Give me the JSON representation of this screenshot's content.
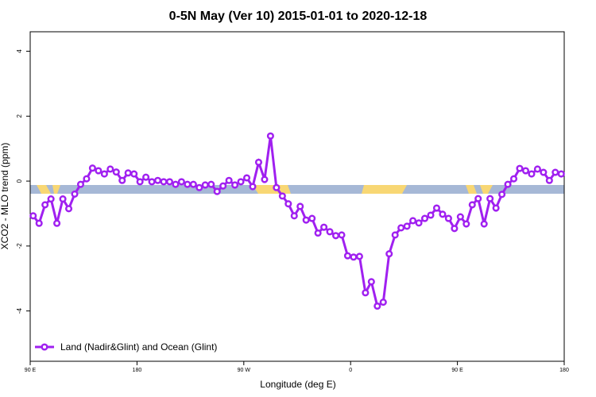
{
  "chart_data": {
    "type": "line",
    "title": "0-5N May (Ver 10)   2015-01-01 to 2020-12-18",
    "x_label": "Longitude (deg E)",
    "y_label": "XCO2 - MLO trend (ppm)",
    "xlim": [
      90,
      540
    ],
    "ylim": [
      -5.55,
      4.6
    ],
    "xticks": [
      {
        "value": 90,
        "label": "90 E"
      },
      180,
      {
        "value": 270,
        "label": "90 W"
      },
      {
        "value": 360,
        "label": "0"
      },
      {
        "value": 450,
        "label": "90 E"
      },
      {
        "value": 540,
        "label": "180"
      }
    ],
    "yticks": [
      4,
      2,
      0,
      -2,
      -4
    ],
    "legend": "bottomleft",
    "x": [
      92.5,
      97.5,
      102.5,
      107.5,
      112.5,
      117.5,
      122.5,
      127.5,
      132.5,
      137.5,
      142.5,
      147.5,
      152.5,
      157.5,
      162.5,
      167.5,
      172.5,
      177.5,
      182.5,
      187.5,
      192.5,
      197.5,
      202.5,
      207.5,
      212.5,
      217.5,
      222.5,
      227.5,
      232.5,
      237.5,
      242.5,
      247.5,
      252.5,
      257.5,
      262.5,
      267.5,
      272.5,
      277.5,
      282.5,
      287.5,
      292.5,
      297.5,
      302.5,
      307.5,
      312.5,
      317.5,
      322.5,
      327.5,
      332.5,
      337.5,
      342.5,
      347.5,
      352.5,
      357.5,
      362.5,
      367.5,
      372.5,
      377.5,
      382.5,
      387.5,
      392.5,
      397.5,
      402.5,
      407.5,
      412.5,
      417.5,
      422.5,
      427.5,
      432.5,
      437.5,
      442.5,
      447.5,
      452.5,
      457.5,
      462.5,
      467.5,
      472.5,
      477.5,
      482.5,
      487.5,
      492.5,
      497.5,
      502.5,
      507.5,
      512.5,
      517.5,
      522.5,
      527.5,
      532.5,
      537.5
    ],
    "series": [
      {
        "name": "Land (Nadir&Glint) and Ocean (Glint)",
        "color": "#a020f0",
        "values": [
          -1.07,
          -1.3,
          -0.73,
          -0.55,
          -1.3,
          -0.55,
          -0.85,
          -0.4,
          -0.1,
          0.07,
          0.4,
          0.32,
          0.22,
          0.37,
          0.28,
          0.02,
          0.25,
          0.22,
          -0.02,
          0.12,
          -0.02,
          0.02,
          -0.02,
          -0.02,
          -0.1,
          -0.02,
          -0.1,
          -0.1,
          -0.2,
          -0.12,
          -0.1,
          -0.32,
          -0.15,
          0.02,
          -0.12,
          -0.02,
          0.1,
          -0.17,
          0.58,
          0.05,
          1.39,
          -0.2,
          -0.46,
          -0.7,
          -1.07,
          -0.78,
          -1.2,
          -1.15,
          -1.6,
          -1.42,
          -1.56,
          -1.68,
          -1.66,
          -2.3,
          -2.34,
          -2.32,
          -3.44,
          -3.1,
          -3.85,
          -3.73,
          -2.24,
          -1.66,
          -1.44,
          -1.39,
          -1.22,
          -1.29,
          -1.15,
          -1.05,
          -0.83,
          -1.02,
          -1.15,
          -1.46,
          -1.1,
          -1.32,
          -0.73,
          -0.54,
          -1.32,
          -0.54,
          -0.83,
          -0.41,
          -0.1,
          0.07,
          0.39,
          0.32,
          0.22,
          0.37,
          0.27,
          0.02,
          0.27,
          0.22
        ]
      }
    ]
  }
}
